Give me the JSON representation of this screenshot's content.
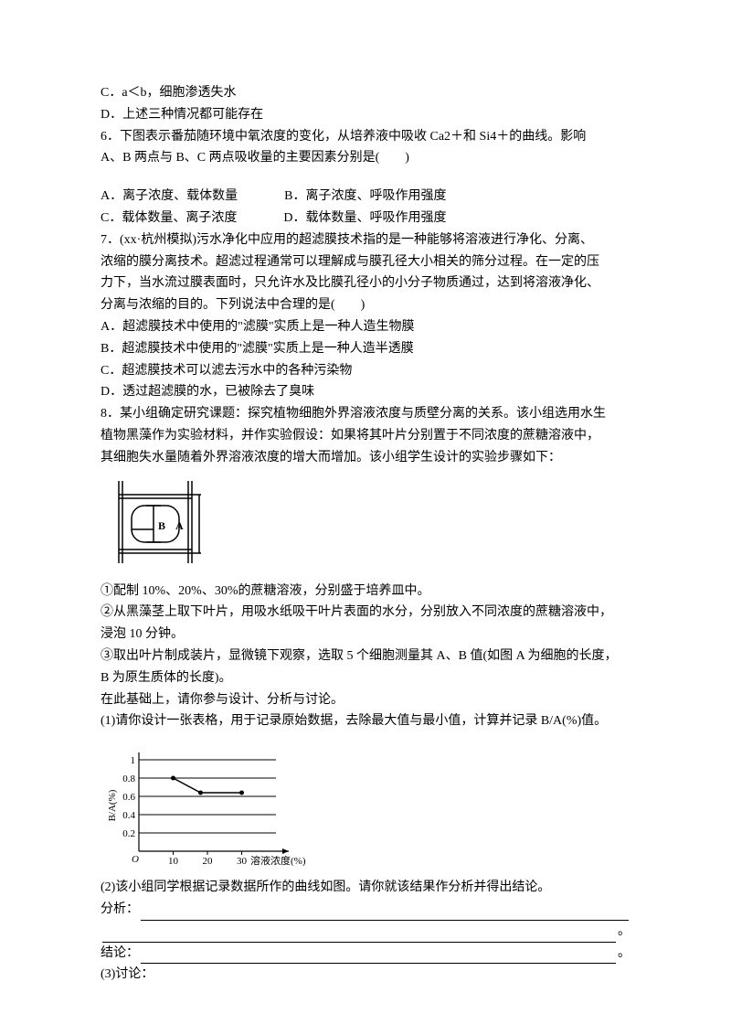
{
  "q5": {
    "optC": "C．a＜b，细胞渗透失水",
    "optD": "D．上述三种情况都可能存在"
  },
  "q6": {
    "stem1": "6．下图表示番茄随环境中氧浓度的变化，从培养液中吸收 Ca2＋和 Si4＋的曲线。影响",
    "stem2": "A、B 两点与 B、C 两点吸收量的主要因素分别是(　　)",
    "optA": "A．离子浓度、载体数量",
    "optB": "B．离子浓度、呼吸作用强度",
    "optC": "C．载体数量、离子浓度",
    "optD": "D．载体数量、呼吸作用强度"
  },
  "q7": {
    "stem1": "7．(xx·杭州模拟)污水净化中应用的超滤膜技术指的是一种能够将溶液进行净化、分离、",
    "stem2": "浓缩的膜分离技术。超滤过程通常可以理解成与膜孔径大小相关的筛分过程。在一定的压",
    "stem3": "力下，当水流过膜表面时，只允许水及比膜孔径小的小分子物质通过，达到将溶液净化、",
    "stem4": "分离与浓缩的目的。下列说法中合理的是(　　)",
    "optA": "A．超滤膜技术中使用的\"滤膜\"实质上是一种人造生物膜",
    "optB": "B．超滤膜技术中使用的\"滤膜\"实质上是一种人造半透膜",
    "optC": "C．超滤膜技术可以滤去污水中的各种污染物",
    "optD": "D．透过超滤膜的水，已被除去了臭味"
  },
  "q8": {
    "stem1": "8．某小组确定研究课题：探究植物细胞外界溶液浓度与质壁分离的关系。该小组选用水生",
    "stem2": "植物黑藻作为实验材料，并作实验假设：如果将其叶片分别置于不同浓度的蔗糖溶液中，",
    "stem3": "其细胞失水量随着外界溶液浓度的增大而增加。该小组学生设计的实验步骤如下：",
    "step1": "①配制 10%、20%、30%的蔗糖溶液，分别盛于培养皿中。",
    "step2a": "②从黑藻茎上取下叶片，用吸水纸吸干叶片表面的水分，分别放入不同浓度的蔗糖溶液中，",
    "step2b": "浸泡 10 分钟。",
    "step3a": "③取出叶片制成装片，显微镜下观察，选取 5 个细胞测量其 A、B 值(如图 A 为细胞的长度，",
    "step3b": "B 为原生质体的长度)。",
    "step4": "在此基础上，请你参与设计、分析与讨论。",
    "sub1": "(1)请你设计一张表格，用于记录原始数据，去除最大值与最小值，计算并记录 B/A(%)值。",
    "sub2a": "(2)该小组同学根据记录数据所作的曲线如图。请你就该结果作分析并得出结论。",
    "sub2b": "分析：",
    "sub2c": "结论：",
    "sub3": "(3)讨论："
  },
  "cell_diagram": {
    "label_A": "A",
    "label_B": "B",
    "stroke": "#000000"
  },
  "chart": {
    "ylabel": "B/A(%)",
    "xlabel": "溶液浓度(%)",
    "yticks": [
      "1",
      "0.8",
      "0.6",
      "0.4",
      "0.2"
    ],
    "xticks": [
      "10",
      "20",
      "30"
    ],
    "origin": "O",
    "axis_color": "#000000",
    "grid_color": "#000000",
    "line_color": "#000000",
    "ylim": [
      0,
      1
    ],
    "xlim": [
      0,
      40
    ],
    "points": [
      {
        "x": 10,
        "y": 0.8
      },
      {
        "x": 18,
        "y": 0.64
      },
      {
        "x": 30,
        "y": 0.64
      }
    ]
  }
}
